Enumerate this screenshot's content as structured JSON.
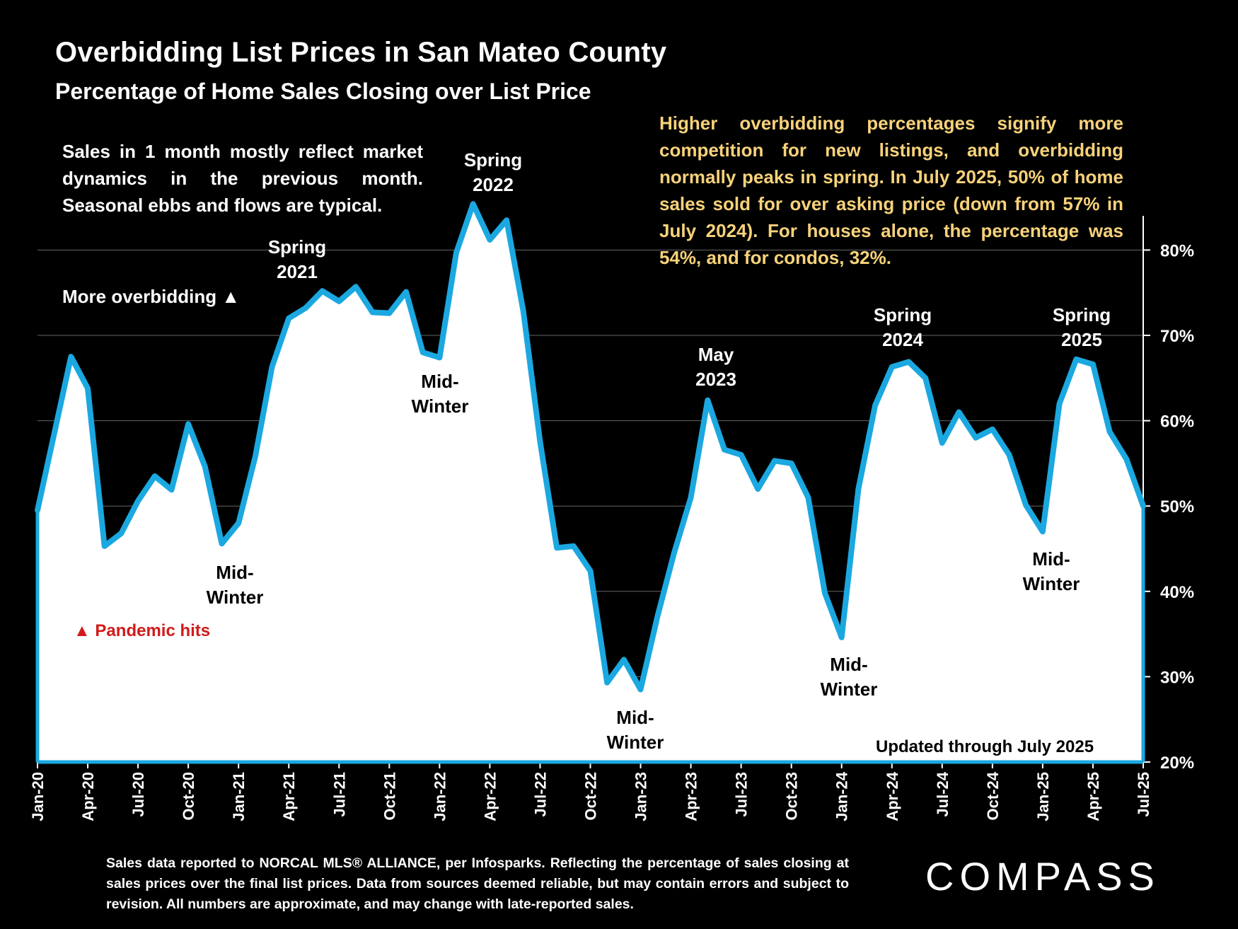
{
  "title": "Overbidding List Prices in San Mateo County",
  "subtitle": "Percentage of Home Sales Closing over List Price",
  "note_left": "Sales in 1 month mostly reflect market dynamics in the previous month. Seasonal ebbs and flows are typical.",
  "note_right": "Higher overbidding percentages signify more competition for new listings, and overbidding normally peaks in spring. In July 2025, 50% of home sales sold for over asking price (down from 57% in July 2024). For houses alone, the percentage was 54%, and for condos, 32%.",
  "more_overbidding": "More overbidding ▲",
  "pandemic": "▲ Pandemic hits",
  "updated": "Updated through July 2025",
  "footnote": "Sales data reported to NORCAL MLS® ALLIANCE, per Infosparks. Reflecting the percentage of sales closing at sales prices over the final list prices. Data from sources deemed reliable, but may contain errors and subject to revision. All numbers are approximate, and may change with late-reported sales.",
  "logo": "COMPASS",
  "colors": {
    "line": "#1ba8e0",
    "fill": "#ffffff",
    "note": "#f7d27a",
    "pandemic": "#d21a1a"
  },
  "annotations": {
    "spring_2021": [
      "Spring",
      "2021"
    ],
    "spring_2022": [
      "Spring",
      "2022"
    ],
    "midwinter_2021": [
      "Mid-",
      "Winter"
    ],
    "midwinter_2022": [
      "Mid-",
      "Winter"
    ],
    "midwinter_2023": [
      "Mid-",
      "Winter"
    ],
    "may_2023": [
      "May",
      "2023"
    ],
    "spring_2024": [
      "Spring",
      "2024"
    ],
    "midwinter_2024": [
      "Mid-",
      "Winter"
    ],
    "spring_2025": [
      "Spring",
      "2025"
    ],
    "midwinter_2025": [
      "Mid-",
      "Winter"
    ]
  },
  "chart_data": {
    "type": "area",
    "title": "Overbidding List Prices in San Mateo County",
    "subtitle": "Percentage of Home Sales Closing over List Price",
    "xlabel": "",
    "ylabel": "",
    "ylim": [
      20,
      85
    ],
    "yticks": [
      20,
      30,
      40,
      50,
      60,
      70,
      80
    ],
    "ytick_labels": [
      "20%",
      "30%",
      "40%",
      "50%",
      "60%",
      "70%",
      "80%"
    ],
    "xtick_labels": [
      "Jan-20",
      "Apr-20",
      "Jul-20",
      "Oct-20",
      "Jan-21",
      "Apr-21",
      "Jul-21",
      "Oct-21",
      "Jan-22",
      "Apr-22",
      "Jul-22",
      "Oct-22",
      "Jan-23",
      "Apr-23",
      "Jul-23",
      "Oct-23",
      "Jan-24",
      "Apr-24",
      "Jul-24",
      "Oct-24",
      "Jan-25",
      "Apr-25",
      "Jul-25"
    ],
    "grid": true,
    "series": [
      {
        "name": "Percentage of Home Sales Closing over List Price",
        "x": [
          "Jan-20",
          "Feb-20",
          "Mar-20",
          "Apr-20",
          "May-20",
          "Jun-20",
          "Jul-20",
          "Aug-20",
          "Sep-20",
          "Oct-20",
          "Nov-20",
          "Dec-20",
          "Jan-21",
          "Feb-21",
          "Mar-21",
          "Apr-21",
          "May-21",
          "Jun-21",
          "Jul-21",
          "Aug-21",
          "Sep-21",
          "Oct-21",
          "Nov-21",
          "Dec-21",
          "Jan-22",
          "Feb-22",
          "Mar-22",
          "Apr-22",
          "May-22",
          "Jun-22",
          "Jul-22",
          "Aug-22",
          "Sep-22",
          "Oct-22",
          "Nov-22",
          "Dec-22",
          "Jan-23",
          "Feb-23",
          "Mar-23",
          "Apr-23",
          "May-23",
          "Jun-23",
          "Jul-23",
          "Aug-23",
          "Sep-23",
          "Oct-23",
          "Nov-23",
          "Dec-23",
          "Jan-24",
          "Feb-24",
          "Mar-24",
          "Apr-24",
          "May-24",
          "Jun-24",
          "Jul-24",
          "Aug-24",
          "Sep-24",
          "Oct-24",
          "Nov-24",
          "Dec-24",
          "Jan-25",
          "Feb-25",
          "Mar-25",
          "Apr-25",
          "May-25",
          "Jun-25",
          "Jul-25"
        ],
        "values": [
          49.5,
          58.5,
          67.5,
          63.8,
          45.3,
          46.8,
          50.6,
          53.5,
          51.9,
          59.6,
          54.6,
          45.6,
          48.0,
          55.8,
          66.3,
          72.0,
          73.2,
          75.2,
          74.0,
          75.7,
          72.7,
          72.6,
          75.1,
          68.0,
          67.4,
          79.7,
          85.4,
          81.2,
          83.5,
          72.8,
          57.5,
          45.1,
          45.3,
          42.4,
          29.3,
          32.0,
          28.5,
          37.0,
          44.5,
          51.0,
          62.4,
          56.6,
          56.0,
          52.0,
          55.3,
          55.0,
          51.0,
          39.8,
          34.6,
          52.0,
          61.8,
          66.3,
          66.9,
          65.0,
          57.4,
          61.0,
          58.0,
          59.0,
          56.0,
          50.1,
          47.0,
          62.0,
          67.2,
          66.6,
          58.7,
          55.5,
          50.0
        ]
      }
    ]
  }
}
